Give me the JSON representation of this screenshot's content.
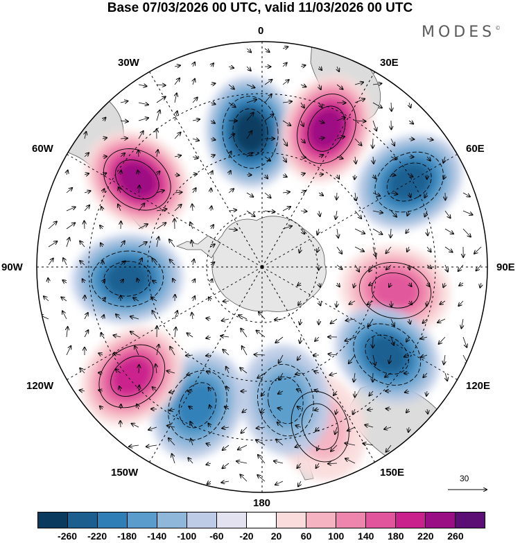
{
  "title": "Base 07/03/2026 00 UTC, valid 11/03/2026 00 UTC",
  "brand": {
    "name": "MODES",
    "mark": "©"
  },
  "map": {
    "projection": "south-polar-stereographic",
    "longitude_labels": {
      "top": "0",
      "bottom": "180",
      "left": "90W",
      "right": "90E",
      "nw1": "30W",
      "nw2": "60W",
      "ne1": "30E",
      "ne2": "60E",
      "sw1": "120W",
      "sw2": "150W",
      "se1": "120E",
      "se2": "150E"
    },
    "anomaly_centers": [
      {
        "name": "neg-0E",
        "value": -240,
        "lon": -5
      },
      {
        "name": "pos-30E",
        "value": 240,
        "lon": 25
      },
      {
        "name": "neg-65E",
        "value": -180,
        "lon": 60
      },
      {
        "name": "pos-95E",
        "value": 150,
        "lon": 100
      },
      {
        "name": "neg-130E",
        "value": -180,
        "lon": 125
      },
      {
        "name": "pos-160E",
        "value": 60,
        "lon": 160
      },
      {
        "name": "neg-170W",
        "value": -100,
        "lon": 170
      },
      {
        "name": "neg-160W",
        "value": -140,
        "lon": -155
      },
      {
        "name": "pos-130W",
        "value": 200,
        "lon": -130
      },
      {
        "name": "neg-95W",
        "value": -180,
        "lon": -95
      },
      {
        "name": "pos-55W",
        "value": 240,
        "lon": -55
      }
    ]
  },
  "colorbar": {
    "colors": [
      "#0a3a5e",
      "#1c5e8e",
      "#2f7fb6",
      "#5a9ccb",
      "#8fb7da",
      "#bdcbe6",
      "#e3e2f0",
      "#ffffff",
      "#fadcdc",
      "#f5b3c2",
      "#ee85ac",
      "#e0559b",
      "#c9228c",
      "#9a0f83",
      "#5b0e73"
    ],
    "tick_labels": [
      "-260",
      "-220",
      "-180",
      "-140",
      "-100",
      "-60",
      "-20",
      "20",
      "60",
      "100",
      "140",
      "180",
      "220",
      "260"
    ]
  },
  "reference_vector": {
    "label": "30"
  },
  "colors": {
    "land": "#dcdcdc",
    "ice": "#e8e8e8",
    "coast": "#555555",
    "grid": "#000000"
  }
}
